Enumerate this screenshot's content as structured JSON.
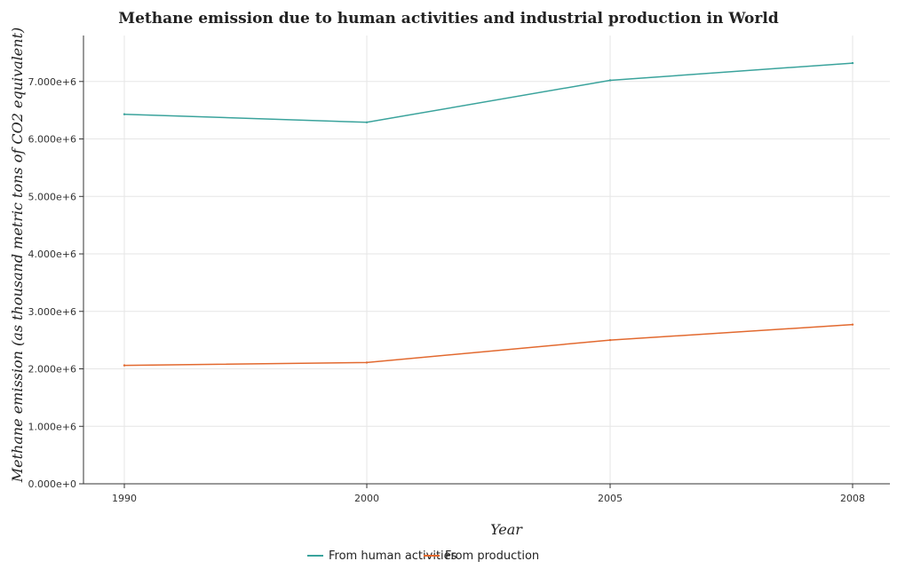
{
  "chart_data": {
    "type": "line",
    "title": "Methane emission due to human activities and industrial production in World",
    "xlabel": "Year",
    "ylabel": "Methane emission (as thousand metric tons of CO2 equivalent)",
    "categories": [
      "1990",
      "2000",
      "2005",
      "2008"
    ],
    "ylim": [
      0,
      7800000
    ],
    "yticks": [
      0,
      1000000,
      2000000,
      3000000,
      4000000,
      5000000,
      6000000,
      7000000
    ],
    "ytick_labels": [
      "0.000e+0",
      "1.000e+6",
      "2.000e+6",
      "3.000e+6",
      "4.000e+6",
      "5.000e+6",
      "6.000e+6",
      "7.000e+6"
    ],
    "grid": true,
    "legend_position": "bottom-center",
    "series": [
      {
        "name": "From human activities",
        "color": "#3aa39c",
        "values": [
          6430000,
          6290000,
          7020000,
          7320000
        ]
      },
      {
        "name": "From production",
        "color": "#e2692f",
        "values": [
          2060000,
          2110000,
          2500000,
          2770000
        ]
      }
    ]
  }
}
